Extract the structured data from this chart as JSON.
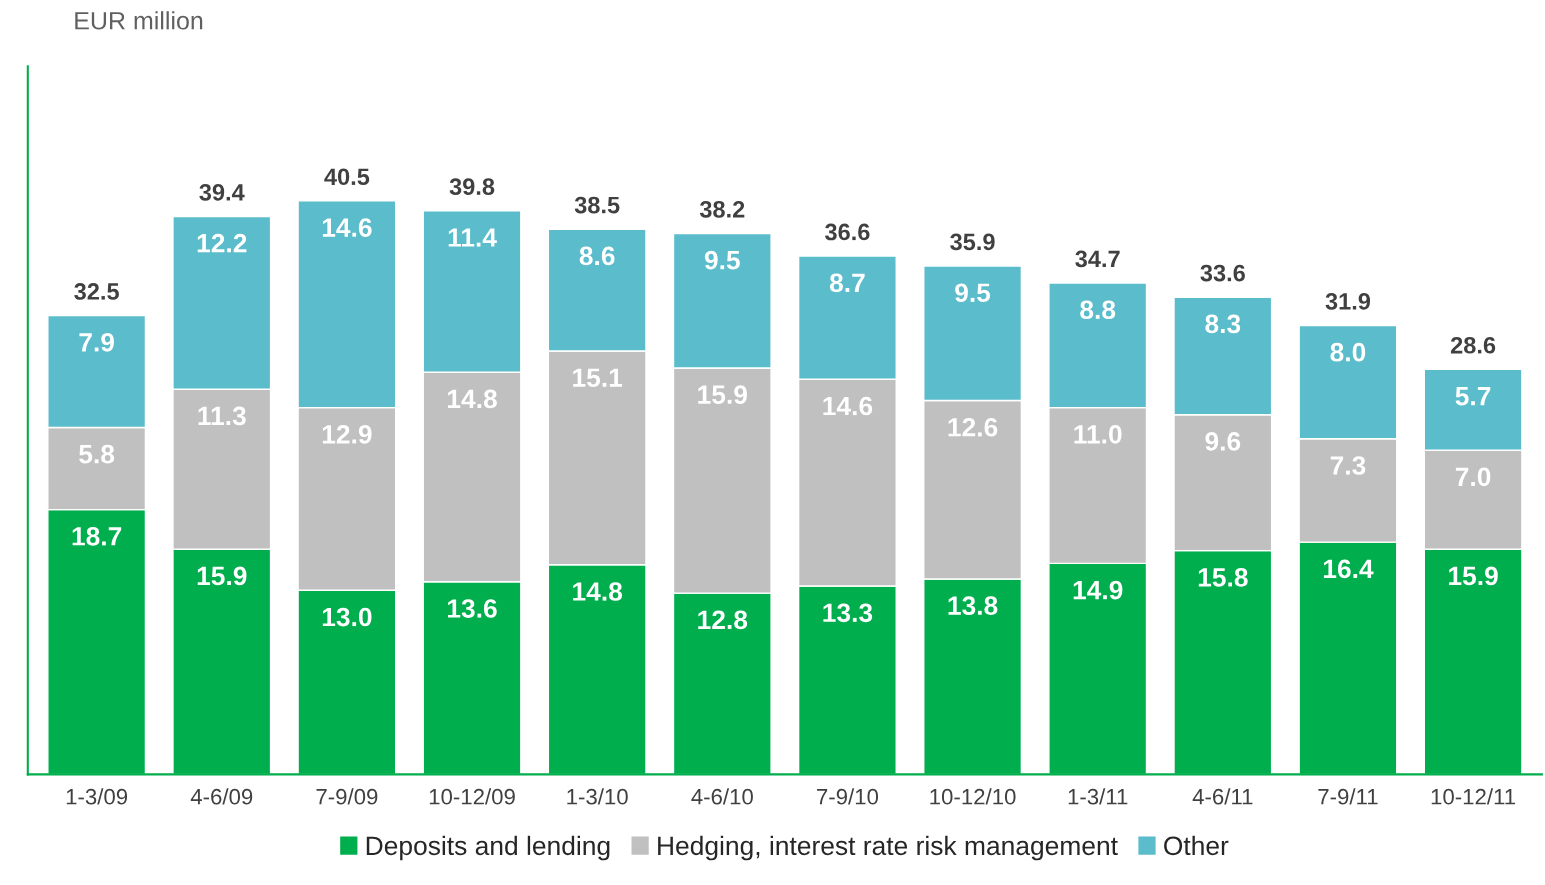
{
  "chart_data": {
    "type": "bar",
    "stacked": true,
    "ylabel": "EUR million",
    "categories": [
      "1-3/09",
      "4-6/09",
      "7-9/09",
      "10-12/09",
      "1-3/10",
      "4-6/10",
      "7-9/10",
      "10-12/10",
      "1-3/11",
      "4-6/11",
      "7-9/11",
      "10-12/11"
    ],
    "series": [
      {
        "name": "Deposits and lending",
        "color": "#00ae4d",
        "values": [
          18.7,
          15.9,
          13.0,
          13.6,
          14.8,
          12.8,
          13.3,
          13.8,
          14.9,
          15.8,
          16.4,
          15.9
        ],
        "value_labels": [
          "18.7",
          "15.9",
          "13.0",
          "13.6",
          "14.8",
          "12.8",
          "13.3",
          "13.8",
          "14.9",
          "15.8",
          "16.4",
          "15.9"
        ]
      },
      {
        "name": "Hedging, interest rate risk management",
        "color": "#c0c0c0",
        "values": [
          5.8,
          11.3,
          12.9,
          14.8,
          15.1,
          15.9,
          14.6,
          12.6,
          11.0,
          9.6,
          7.3,
          7.0
        ],
        "value_labels": [
          "5.8",
          "11.3",
          "12.9",
          "14.8",
          "15.1",
          "15.9",
          "14.6",
          "12.6",
          "11.0",
          "9.6",
          "7.3",
          "7.0"
        ]
      },
      {
        "name": "Other",
        "color": "#5bbccc",
        "values": [
          7.9,
          12.2,
          14.6,
          11.4,
          8.6,
          9.5,
          8.7,
          9.5,
          8.8,
          8.3,
          8.0,
          5.7
        ],
        "value_labels": [
          "7.9",
          "12.2",
          "14.6",
          "11.4",
          "8.6",
          "9.5",
          "8.7",
          "9.5",
          "8.8",
          "8.3",
          "8.0",
          "5.7"
        ]
      }
    ],
    "totals": [
      "32.5",
      "39.4",
      "40.5",
      "39.8",
      "38.5",
      "38.2",
      "36.6",
      "35.9",
      "34.7",
      "33.6",
      "31.9",
      "28.6"
    ],
    "ylim": [
      0,
      50
    ],
    "tick_labels": "x",
    "legend": "bottom",
    "grid": false
  }
}
